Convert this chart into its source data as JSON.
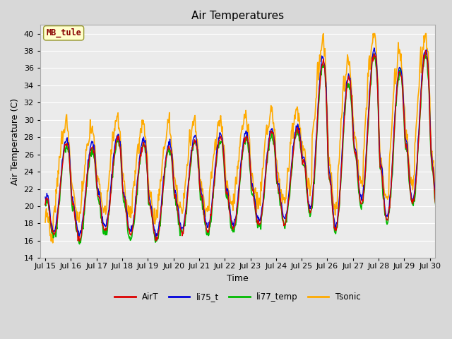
{
  "title": "Air Temperatures",
  "xlabel": "Time",
  "ylabel": "Air Temperature (C)",
  "ylim": [
    14,
    41
  ],
  "yticks": [
    14,
    16,
    18,
    20,
    22,
    24,
    26,
    28,
    30,
    32,
    34,
    36,
    38,
    40
  ],
  "bg_color": "#d8d8d8",
  "plot_bg_color": "#ebebeb",
  "grid_color": "#ffffff",
  "label_box_text": "MB_tule",
  "label_box_facecolor": "#ffffcc",
  "label_box_edgecolor": "#999933",
  "label_box_textcolor": "#880000",
  "series": {
    "AirT": {
      "color": "#dd0000",
      "lw": 1.0
    },
    "li75_t": {
      "color": "#0000dd",
      "lw": 1.0
    },
    "li77_temp": {
      "color": "#00bb00",
      "lw": 1.2
    },
    "Tsonic": {
      "color": "#ffaa00",
      "lw": 1.2
    }
  },
  "x_tick_labels": [
    "Jul 15",
    "Jul 16",
    "Jul 17",
    "Jul 18",
    "Jul 19",
    "Jul 20",
    "Jul 21",
    "Jul 22",
    "Jul 23",
    "Jul 24",
    "Jul 25",
    "Jul 26",
    "Jul 27",
    "Jul 28",
    "Jul 29",
    "Jul 30"
  ],
  "n_days": 16,
  "pts_per_day": 48
}
